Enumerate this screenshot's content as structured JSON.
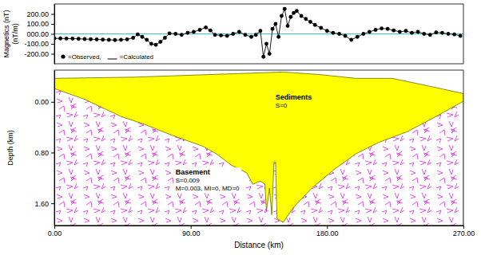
{
  "chart_data": [
    {
      "type": "line",
      "ylabel": [
        "Magnetics (nT)",
        "(nT/m)"
      ],
      "x": [
        0,
        4,
        8,
        12,
        16,
        20,
        24,
        28,
        32,
        36,
        40,
        44,
        48,
        52,
        55,
        58,
        61,
        64,
        67,
        70,
        73,
        76,
        80,
        84,
        88,
        92,
        96,
        100,
        103,
        106,
        110,
        114,
        118,
        122,
        126,
        130,
        133,
        136,
        138,
        140,
        142,
        144,
        146,
        148,
        150,
        152,
        154,
        156,
        158,
        160,
        163,
        166,
        169,
        172,
        176,
        180,
        184,
        188,
        192,
        196,
        200,
        204,
        208,
        212,
        216,
        220,
        224,
        228,
        232,
        236,
        240,
        244,
        248,
        252,
        256,
        260,
        264,
        268
      ],
      "series": [
        {
          "name": "=Observed,",
          "type": "scatter",
          "marker": "circle",
          "color": "#000000",
          "values": [
            -45,
            -46,
            -47,
            -48,
            -50,
            -52,
            -54,
            -56,
            -58,
            -60,
            -62,
            -60,
            -55,
            -40,
            -5,
            -30,
            -60,
            -100,
            -110,
            -80,
            -40,
            5,
            0,
            -10,
            10,
            20,
            40,
            65,
            35,
            -10,
            -15,
            -20,
            0,
            20,
            -10,
            -30,
            -10,
            30,
            -230,
            -100,
            -200,
            50,
            100,
            -30,
            180,
            250,
            80,
            170,
            210,
            230,
            180,
            150,
            120,
            90,
            60,
            30,
            10,
            0,
            -20,
            -60,
            -30,
            0,
            20,
            40,
            55,
            50,
            35,
            20,
            30,
            10,
            20,
            0,
            -10,
            15,
            10,
            0,
            -5,
            -20
          ]
        },
        {
          "name": "=Calculated",
          "type": "line",
          "line_style": "solid",
          "color": "#000000",
          "values": [
            -45,
            -46,
            -47,
            -48,
            -50,
            -52,
            -54,
            -56,
            -58,
            -60,
            -62,
            -60,
            -55,
            -40,
            -5,
            -30,
            -60,
            -100,
            -110,
            -80,
            -40,
            5,
            0,
            -10,
            10,
            20,
            40,
            65,
            35,
            -10,
            -15,
            -20,
            0,
            20,
            -10,
            -30,
            -10,
            30,
            -230,
            -100,
            -200,
            50,
            100,
            -30,
            180,
            250,
            80,
            170,
            210,
            230,
            180,
            150,
            120,
            90,
            60,
            30,
            10,
            0,
            -20,
            -60,
            -30,
            0,
            20,
            40,
            55,
            50,
            35,
            20,
            30,
            10,
            20,
            0,
            -10,
            15,
            10,
            0,
            -5,
            -20
          ]
        }
      ],
      "reference_line": {
        "y": 0,
        "color": "#33cccc"
      },
      "xlim": [
        0,
        270
      ],
      "ylim": [
        -300,
        300
      ],
      "yticks": [
        {
          "value": 200,
          "label": "200.00"
        },
        {
          "value": 100,
          "label": "100.00"
        },
        {
          "value": 0,
          "label": "000.00"
        },
        {
          "value": -100,
          "label": "-100.00"
        },
        {
          "value": -200,
          "label": "-200.00"
        }
      ],
      "tick_labels": "y",
      "legend": "lower left"
    },
    {
      "type": "area",
      "xlabel": "Distance (km)",
      "ylabel": "Depth (km)",
      "series": [
        {
          "name": "Sediments",
          "type": "area",
          "color": "#ffff00",
          "x": [
            0,
            54,
            102,
            127,
            151,
            175,
            199,
            223,
            247,
            270
          ],
          "values": [
            -0.37,
            -0.39,
            -0.43,
            -0.45,
            -0.47,
            -0.43,
            -0.37,
            -0.37,
            -0.25,
            -0.13
          ],
          "label": {
            "x": 146,
            "y": -0.04,
            "lines": [
              "S=0"
            ]
          }
        },
        {
          "name": "Basement",
          "type": "area",
          "color": "#e020e0",
          "x": [
            0,
            20,
            44,
            59,
            78,
            98,
            107,
            117,
            127,
            131,
            136,
            139,
            140,
            142,
            143.5,
            145,
            146,
            147,
            151,
            158,
            170,
            185,
            199,
            214,
            233,
            252,
            270
          ],
          "values": [
            -0.21,
            -0.04,
            0.23,
            0.35,
            0.53,
            0.7,
            0.82,
            1.0,
            1.12,
            1.3,
            1.25,
            1.3,
            1.72,
            1.36,
            1.78,
            0.95,
            0.95,
            1.84,
            1.9,
            1.66,
            1.36,
            1.06,
            0.82,
            0.64,
            0.47,
            0.23,
            -0.01
          ],
          "label": {
            "x": 80,
            "y": 1.15,
            "lines": [
              "S=0.009",
              "M=0.003, MI=0, MD=0"
            ]
          }
        }
      ],
      "xlim": [
        0,
        270
      ],
      "ylim": [
        1.95,
        -0.5
      ],
      "xticks": [
        {
          "value": 0,
          "label": "0.00"
        },
        {
          "value": 90,
          "label": "90.00"
        },
        {
          "value": 180,
          "label": "180.00"
        },
        {
          "value": 270,
          "label": "270.00"
        }
      ],
      "yticks": [
        {
          "value": 0,
          "label": "0.00"
        },
        {
          "value": 0.8,
          "label": "0.80"
        },
        {
          "value": 1.6,
          "label": "1.60"
        }
      ]
    }
  ]
}
